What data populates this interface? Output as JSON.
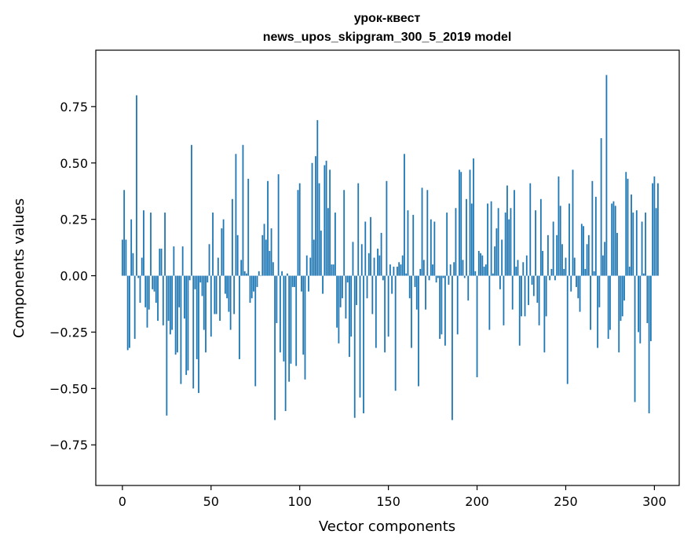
{
  "chart_data": {
    "type": "bar",
    "title": "урок-квест",
    "subtitle": "news_upos_skipgram_300_5_2019 model",
    "xlabel": "Vector components",
    "ylabel": "Components values",
    "xlim": [
      -15,
      314
    ],
    "ylim": [
      -0.93,
      1.0
    ],
    "xticks": [
      0,
      50,
      100,
      150,
      200,
      250,
      300
    ],
    "yticks": [
      -0.75,
      -0.5,
      -0.25,
      0.0,
      0.25,
      0.5,
      0.75
    ],
    "ytick_labels": [
      "−0.75",
      "−0.50",
      "−0.25",
      "0.00",
      "0.25",
      "0.50",
      "0.75"
    ],
    "bar_color": "#1f77b4",
    "grid": false,
    "values": [
      0.16,
      0.38,
      0.16,
      -0.33,
      -0.32,
      0.25,
      0.1,
      -0.28,
      0.8,
      -0.01,
      -0.12,
      0.08,
      0.29,
      -0.14,
      -0.23,
      -0.15,
      0.28,
      -0.06,
      -0.07,
      -0.12,
      -0.2,
      0.12,
      0.12,
      -0.22,
      0.28,
      -0.62,
      -0.2,
      -0.26,
      -0.24,
      0.13,
      -0.35,
      -0.34,
      -0.14,
      -0.48,
      0.13,
      -0.19,
      -0.44,
      -0.42,
      -0.02,
      0.58,
      -0.5,
      -0.06,
      -0.37,
      -0.52,
      -0.03,
      -0.09,
      -0.24,
      -0.34,
      -0.03,
      0.14,
      -0.27,
      0.28,
      -0.17,
      -0.17,
      0.08,
      -0.2,
      0.21,
      0.25,
      -0.08,
      -0.1,
      -0.16,
      -0.24,
      0.34,
      -0.17,
      0.54,
      0.18,
      -0.37,
      0.07,
      0.58,
      0.02,
      0.01,
      0.43,
      -0.12,
      -0.1,
      -0.07,
      -0.49,
      -0.05,
      0.02,
      0.0,
      0.18,
      0.23,
      0.16,
      0.42,
      0.11,
      0.21,
      0.06,
      -0.64,
      -0.21,
      0.45,
      -0.34,
      0.02,
      -0.38,
      -0.6,
      0.01,
      -0.47,
      -0.39,
      -0.05,
      -0.05,
      -0.4,
      0.38,
      0.41,
      -0.07,
      -0.35,
      -0.46,
      0.09,
      -0.07,
      0.08,
      0.5,
      0.16,
      0.53,
      0.69,
      0.41,
      0.2,
      -0.08,
      0.49,
      0.51,
      0.3,
      0.47,
      0.05,
      0.05,
      0.28,
      -0.23,
      -0.3,
      -0.14,
      -0.1,
      0.38,
      -0.19,
      -0.03,
      -0.36,
      -0.27,
      0.15,
      -0.63,
      -0.13,
      0.41,
      -0.54,
      0.14,
      -0.61,
      0.24,
      -0.1,
      0.1,
      0.26,
      -0.17,
      0.08,
      -0.32,
      0.12,
      0.09,
      0.19,
      -0.02,
      -0.34,
      0.42,
      -0.27,
      0.05,
      -0.08,
      0.04,
      -0.51,
      0.04,
      0.06,
      0.05,
      0.09,
      0.54,
      0.01,
      0.29,
      -0.1,
      -0.32,
      0.27,
      -0.05,
      -0.15,
      -0.49,
      0.03,
      0.39,
      0.07,
      -0.15,
      0.38,
      -0.02,
      0.25,
      0.05,
      0.24,
      -0.03,
      -0.01,
      -0.28,
      -0.26,
      -0.01,
      -0.31,
      0.28,
      -0.04,
      0.05,
      -0.64,
      0.06,
      0.3,
      -0.26,
      0.47,
      0.46,
      0.07,
      -0.01,
      0.34,
      -0.11,
      0.47,
      0.32,
      0.52,
      0.02,
      -0.45,
      0.11,
      0.1,
      0.09,
      0.04,
      0.05,
      0.32,
      -0.24,
      0.33,
      0.01,
      0.13,
      0.21,
      0.3,
      -0.06,
      0.16,
      -0.22,
      0.28,
      0.4,
      0.25,
      0.3,
      -0.15,
      0.38,
      0.04,
      0.07,
      -0.31,
      -0.18,
      0.06,
      -0.18,
      0.09,
      -0.13,
      0.41,
      -0.04,
      -0.09,
      0.29,
      -0.12,
      -0.22,
      0.34,
      0.11,
      -0.34,
      -0.18,
      0.18,
      -0.02,
      0.03,
      0.24,
      -0.02,
      0.18,
      0.44,
      0.31,
      0.14,
      0.03,
      0.08,
      -0.48,
      0.32,
      -0.07,
      0.47,
      0.08,
      -0.05,
      -0.1,
      -0.16,
      0.23,
      0.22,
      0.03,
      0.14,
      0.18,
      -0.24,
      0.42,
      0.02,
      0.35,
      -0.32,
      -0.14,
      0.61,
      0.09,
      0.15,
      0.89,
      -0.28,
      -0.24,
      0.32,
      0.33,
      0.31,
      0.19,
      -0.34,
      -0.2,
      -0.18,
      -0.11,
      0.46,
      0.43,
      0.04,
      0.36,
      0.28,
      -0.56,
      0.29,
      -0.25,
      -0.3,
      0.24,
      0.01,
      0.28,
      -0.21,
      -0.61,
      -0.29,
      0.41,
      0.44,
      0.3,
      0.41
    ]
  }
}
